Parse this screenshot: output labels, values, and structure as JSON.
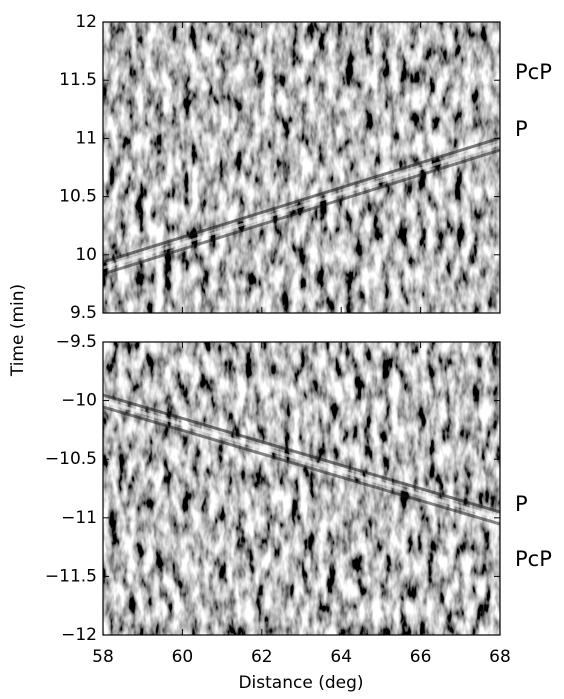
{
  "chart_data": [
    {
      "type": "image",
      "ylabel": "Time (min)",
      "xlim": [
        58,
        68
      ],
      "xticks": [
        58,
        60,
        62,
        64,
        66,
        68
      ],
      "ylim": [
        9.5,
        12
      ],
      "yticks": [
        9.5,
        10,
        10.5,
        11,
        11.5,
        12
      ],
      "annotations": [
        "PcP",
        "P"
      ]
    },
    {
      "type": "image",
      "xlabel": "Distance (deg)",
      "xlim": [
        58,
        68
      ],
      "xticks": [
        58,
        60,
        62,
        64,
        66,
        68
      ],
      "ylim": [
        -12,
        -9.5
      ],
      "yticks": [
        {
          "value": -12,
          "label": "−12"
        },
        {
          "value": -11.5,
          "label": "−11.5"
        },
        {
          "value": -11,
          "label": "−11"
        },
        {
          "value": -10.5,
          "label": "−10.5"
        },
        {
          "value": -10,
          "label": "−10"
        },
        {
          "value": -9.5,
          "label": "−9.5"
        }
      ],
      "annotations": [
        "P",
        "PcP"
      ]
    }
  ]
}
